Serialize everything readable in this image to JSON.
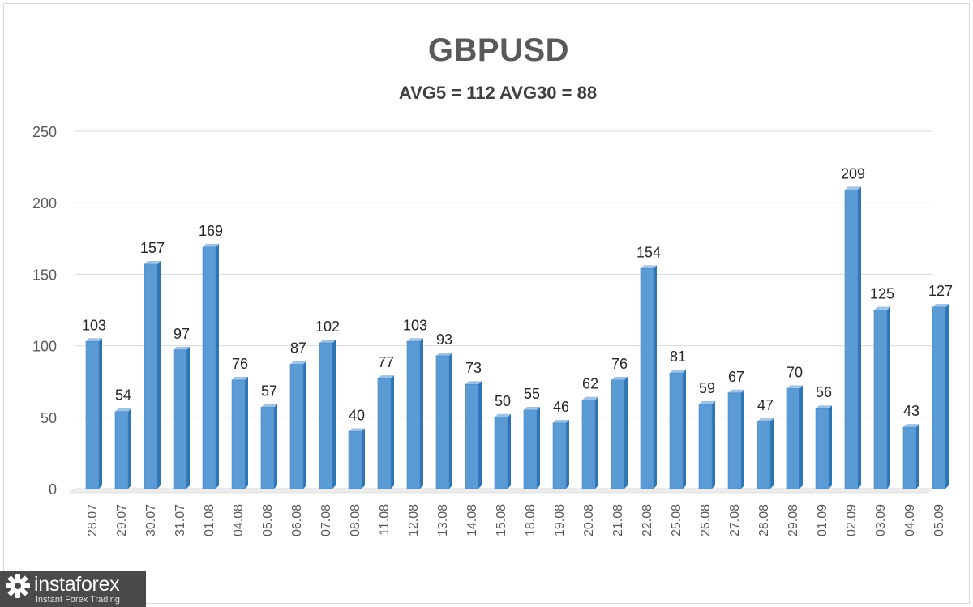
{
  "chart_data": {
    "type": "bar",
    "title": "GBPUSD",
    "subtitle": "AVG5 = 112 AVG30 = 88",
    "categories": [
      "28.07",
      "29.07",
      "30.07",
      "31.07",
      "01.08",
      "04.08",
      "05.08",
      "06.08",
      "07.08",
      "08.08",
      "11.08",
      "12.08",
      "13.08",
      "14.08",
      "15.08",
      "18.08",
      "19.08",
      "20.08",
      "21.08",
      "22.08",
      "25.08",
      "26.08",
      "27.08",
      "28.08",
      "29.08",
      "01.09",
      "02.09",
      "03.09",
      "04.09",
      "05.09"
    ],
    "values": [
      103,
      54,
      157,
      97,
      169,
      76,
      57,
      87,
      102,
      40,
      77,
      103,
      93,
      73,
      50,
      55,
      46,
      62,
      76,
      154,
      81,
      59,
      67,
      47,
      70,
      56,
      209,
      125,
      43,
      127
    ],
    "ylim": [
      0,
      250
    ],
    "yticks": [
      0,
      50,
      100,
      150,
      200,
      250
    ],
    "xlabel": "",
    "ylabel": "",
    "grid": true,
    "legend": "none",
    "bar_color": "#5b9bd5",
    "bar_color_dark": "#2e75b6"
  },
  "logo": {
    "name": "instaforex",
    "tagline": "Instant Forex Trading"
  }
}
